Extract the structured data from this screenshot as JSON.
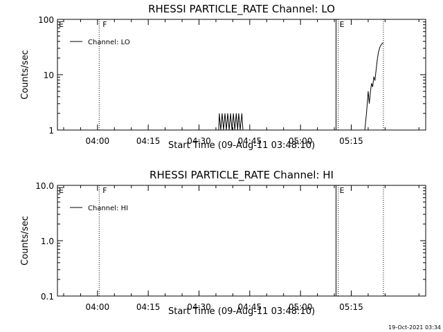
{
  "chart_data": [
    {
      "type": "line",
      "title": "RHESSI PARTICLE_RATE Channel: LO",
      "xlabel": "Start Time (09-Aug-11 03:48:10)",
      "ylabel": "Counts/sec",
      "y_scale": "log",
      "ylim": [
        1,
        100
      ],
      "y_ticks": [
        "1",
        "10",
        "100"
      ],
      "x_ticks": [
        "04:00",
        "04:15",
        "04:30",
        "04:45",
        "05:00",
        "05:15"
      ],
      "xlim": [
        "03:48:10",
        "05:37:00"
      ],
      "legend": {
        "position": "top-left",
        "entries": [
          "Channel: LO"
        ]
      },
      "grid": false,
      "markers": [
        {
          "label": "E",
          "x": "03:48:10",
          "style": "solid"
        },
        {
          "label": "F",
          "x": "04:00:30",
          "style": "dotted"
        },
        {
          "label": "E",
          "x": "05:10:30",
          "style": "solid_dotted"
        },
        {
          "label": "",
          "x": "05:24:30",
          "style": "dotted"
        }
      ],
      "series": [
        {
          "name": "Channel: LO",
          "x": [
            "04:35:50",
            "04:36:00",
            "04:36:25",
            "04:36:50",
            "04:37:15",
            "04:37:40",
            "04:38:05",
            "04:38:30",
            "04:38:55",
            "04:39:20",
            "04:39:45",
            "04:40:10",
            "04:40:35",
            "04:41:00",
            "04:41:25",
            "04:41:45",
            "04:42:10",
            "04:42:40",
            "04:43:00"
          ],
          "values": [
            1.0,
            2.0,
            1.0,
            2.0,
            1.0,
            2.0,
            1.0,
            2.0,
            1.0,
            2.0,
            1.0,
            2.0,
            1.0,
            2.0,
            1.0,
            2.0,
            1.0,
            2.0,
            1.0
          ]
        },
        {
          "name": "Channel: LO",
          "x": [
            "05:19:00",
            "05:19:30",
            "05:20:00",
            "05:20:20",
            "05:20:40",
            "05:21:00",
            "05:21:20",
            "05:21:40",
            "05:22:00",
            "05:22:20",
            "05:22:40",
            "05:23:00",
            "05:23:30",
            "05:24:00",
            "05:24:30"
          ],
          "values": [
            1.0,
            2.0,
            5.0,
            3.0,
            5.0,
            7.0,
            6.0,
            9.0,
            8.0,
            12.0,
            18.0,
            25.0,
            32.0,
            36.0,
            38.0
          ]
        }
      ]
    },
    {
      "type": "line",
      "title": "RHESSI PARTICLE_RATE Channel: HI",
      "xlabel": "Start Time (09-Aug-11 03:48:10)",
      "ylabel": "Counts/sec",
      "y_scale": "log",
      "ylim": [
        0.1,
        10
      ],
      "y_ticks": [
        "0.1",
        "1.0",
        "10.0"
      ],
      "x_ticks": [
        "04:00",
        "04:15",
        "04:30",
        "04:45",
        "05:00",
        "05:15"
      ],
      "xlim": [
        "03:48:10",
        "05:37:00"
      ],
      "legend": {
        "position": "top-left",
        "entries": [
          "Channel: HI"
        ]
      },
      "grid": false,
      "markers": [
        {
          "label": "E",
          "x": "03:48:10",
          "style": "solid"
        },
        {
          "label": "F",
          "x": "04:00:30",
          "style": "dotted"
        },
        {
          "label": "E",
          "x": "05:10:30",
          "style": "solid_dotted"
        },
        {
          "label": "",
          "x": "05:24:30",
          "style": "dotted"
        }
      ],
      "series": [
        {
          "name": "Channel: HI",
          "x": [],
          "values": []
        }
      ]
    }
  ],
  "footer": {
    "timestamp": "19-Oct-2021 03:34"
  },
  "colors": {
    "line": "#000000",
    "background": "#ffffff"
  }
}
